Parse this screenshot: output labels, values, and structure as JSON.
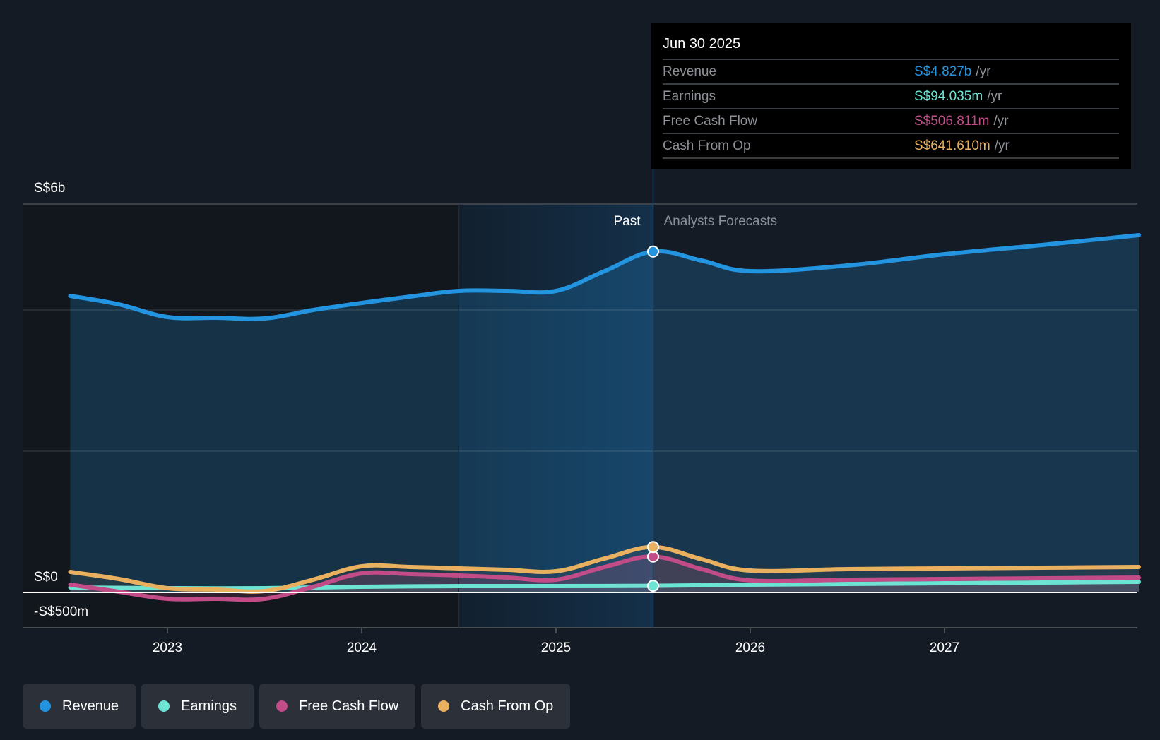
{
  "tooltip": {
    "date": "Jun 30 2025",
    "rows": [
      {
        "label": "Revenue",
        "value": "S$4.827b",
        "unit": "/yr",
        "color": "#2394df"
      },
      {
        "label": "Earnings",
        "value": "S$94.035m",
        "unit": "/yr",
        "color": "#6ce3d3"
      },
      {
        "label": "Free Cash Flow",
        "value": "S$506.811m",
        "unit": "/yr",
        "color": "#c14c87"
      },
      {
        "label": "Cash From Op",
        "value": "S$641.610m",
        "unit": "/yr",
        "color": "#e9b15f"
      }
    ]
  },
  "legend": [
    {
      "label": "Revenue",
      "color": "#2394df"
    },
    {
      "label": "Earnings",
      "color": "#6ce3d3"
    },
    {
      "label": "Free Cash Flow",
      "color": "#c14c87"
    },
    {
      "label": "Cash From Op",
      "color": "#e9b15f"
    }
  ],
  "chart_data": {
    "type": "area",
    "title": "",
    "xlabel": "",
    "ylabel": "",
    "units": "SGD billions",
    "xlim": [
      2022.5,
      2028.0
    ],
    "ylim": [
      -0.5,
      5.5
    ],
    "y_tick_labels": [
      {
        "value": 5.5,
        "label": "S$6b"
      },
      {
        "value": 0,
        "label": "S$0"
      },
      {
        "value": -0.5,
        "label": "-S$500m"
      }
    ],
    "y_gridlines": [
      4,
      2
    ],
    "x_ticks": [
      {
        "value": 2023,
        "label": "2023"
      },
      {
        "value": 2024,
        "label": "2024"
      },
      {
        "value": 2025,
        "label": "2025"
      },
      {
        "value": 2026,
        "label": "2026"
      },
      {
        "value": 2027,
        "label": "2027"
      }
    ],
    "past_label": "Past",
    "forecast_label": "Analysts Forecasts",
    "highlight_start": 2024.5,
    "forecast_start": 2025.5,
    "marker_x": 2025.5,
    "legend_position": "bottom-left",
    "series": [
      {
        "name": "Revenue",
        "color": "#2394df",
        "filled": true,
        "x": [
          2022.5,
          2022.75,
          2023.0,
          2023.25,
          2023.5,
          2023.75,
          2024.0,
          2024.25,
          2024.5,
          2024.75,
          2025.0,
          2025.25,
          2025.5,
          2025.75,
          2026.0,
          2026.5,
          2027.0,
          2027.5,
          2028.0
        ],
        "values": [
          4.2,
          4.08,
          3.9,
          3.89,
          3.88,
          4.0,
          4.1,
          4.19,
          4.27,
          4.27,
          4.27,
          4.55,
          4.827,
          4.7,
          4.55,
          4.63,
          4.79,
          4.92,
          5.06
        ]
      },
      {
        "name": "Earnings",
        "color": "#6ce3d3",
        "filled": false,
        "x": [
          2022.5,
          2023.0,
          2023.5,
          2024.0,
          2024.5,
          2025.0,
          2025.5,
          2026.0,
          2026.5,
          2027.0,
          2027.5,
          2028.0
        ],
        "values": [
          0.07,
          0.06,
          0.06,
          0.08,
          0.09,
          0.09,
          0.094,
          0.11,
          0.12,
          0.13,
          0.14,
          0.15
        ]
      },
      {
        "name": "Free Cash Flow",
        "color": "#c14c87",
        "filled": true,
        "x": [
          2022.5,
          2022.75,
          2023.0,
          2023.25,
          2023.5,
          2023.75,
          2024.0,
          2024.25,
          2024.5,
          2024.75,
          2025.0,
          2025.25,
          2025.5,
          2025.75,
          2026.0,
          2026.5,
          2027.0,
          2027.5,
          2028.0
        ],
        "values": [
          0.11,
          0.01,
          -0.09,
          -0.09,
          -0.09,
          0.08,
          0.27,
          0.26,
          0.24,
          0.21,
          0.18,
          0.36,
          0.507,
          0.33,
          0.17,
          0.18,
          0.19,
          0.2,
          0.21
        ]
      },
      {
        "name": "Cash From Op",
        "color": "#e9b15f",
        "filled": false,
        "x": [
          2022.5,
          2022.75,
          2023.0,
          2023.25,
          2023.5,
          2023.75,
          2024.0,
          2024.25,
          2024.5,
          2024.75,
          2025.0,
          2025.25,
          2025.5,
          2025.75,
          2026.0,
          2026.5,
          2027.0,
          2027.5,
          2028.0
        ],
        "values": [
          0.29,
          0.19,
          0.06,
          0.04,
          0.02,
          0.18,
          0.37,
          0.36,
          0.34,
          0.32,
          0.3,
          0.48,
          0.642,
          0.47,
          0.31,
          0.33,
          0.34,
          0.35,
          0.36
        ]
      }
    ]
  }
}
